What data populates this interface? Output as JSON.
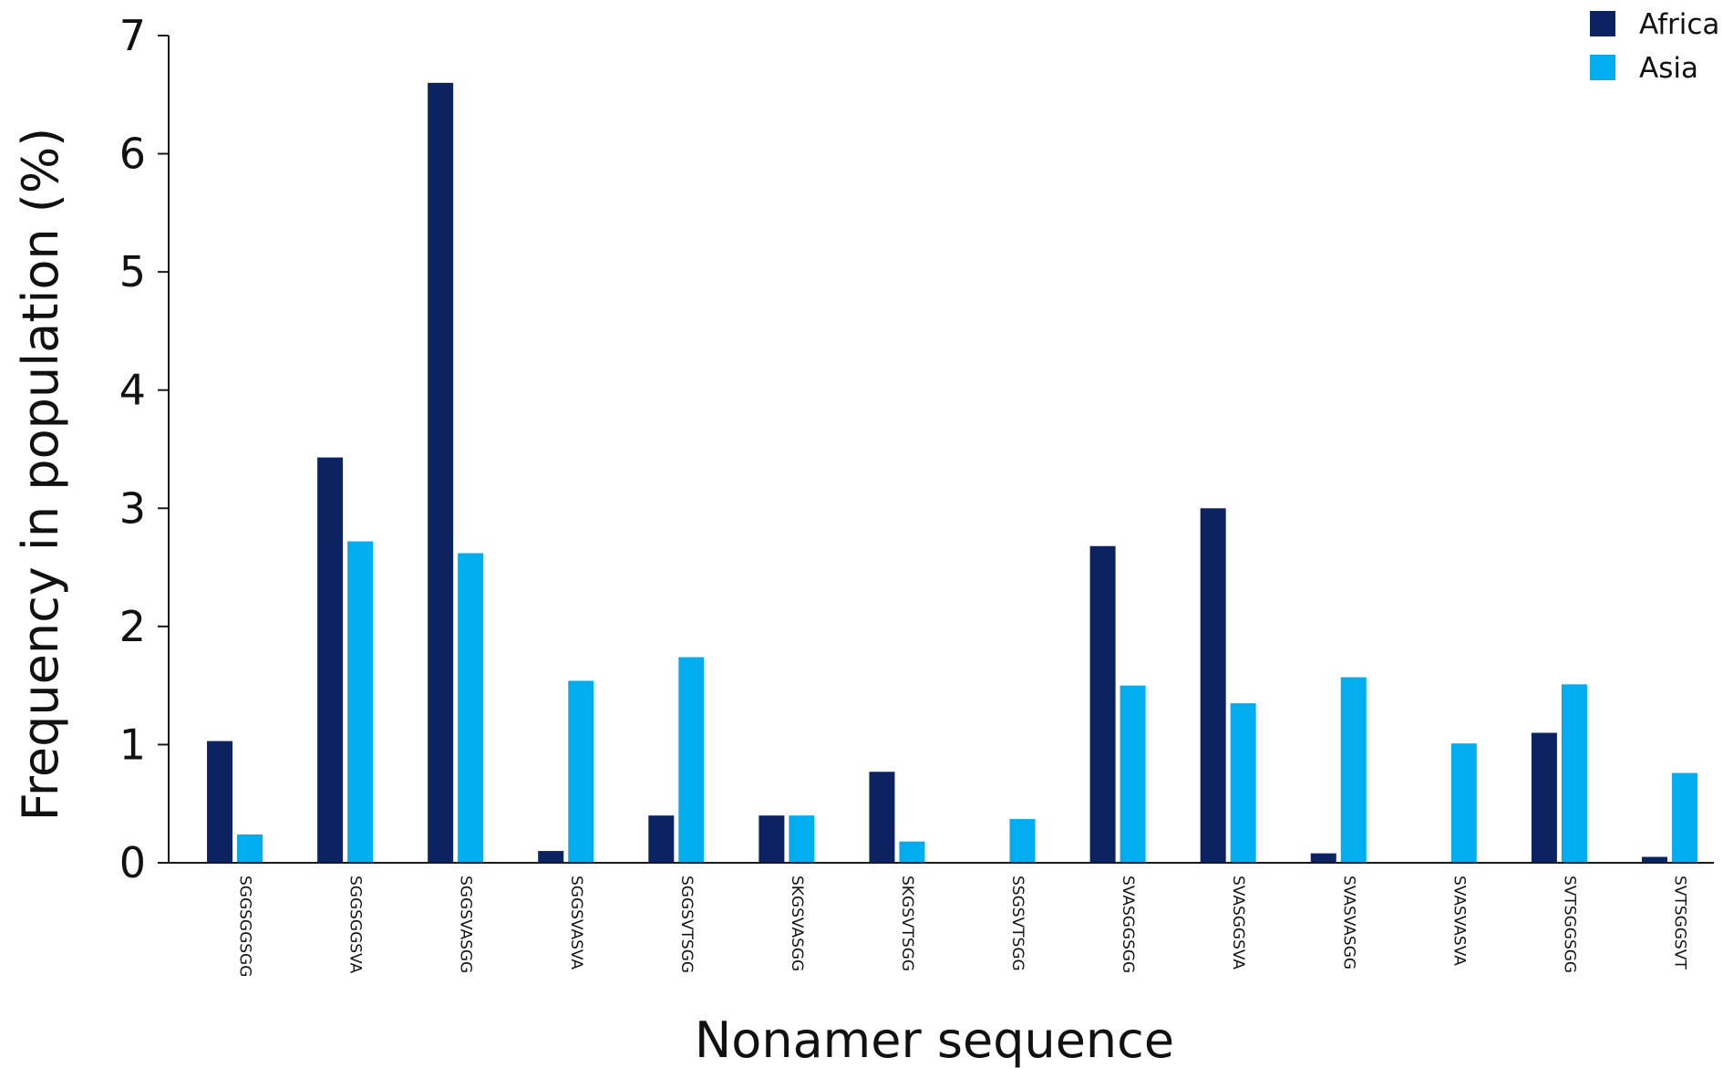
{
  "chart_data": {
    "type": "bar",
    "xlabel": "Nonamer sequence",
    "ylabel": "Frequency in population (%)",
    "ylim": [
      0,
      7
    ],
    "yticks": [
      "0",
      "1",
      "2",
      "3",
      "4",
      "5",
      "6",
      "7"
    ],
    "grid": false,
    "legend_position": "top-right",
    "categories": [
      "SGGSGGSGG",
      "SGGSGGSVA",
      "SGGSVASGG",
      "SGGSVASVA",
      "SGGSVTSGG",
      "SKGSVASGG",
      "SKGSVTSGG",
      "SSGSVTSGG",
      "SVASGGSGG",
      "SVASGGSVA",
      "SVASVASGG",
      "SVASVASVA",
      "SVTSGGSGG",
      "SVTSGGSVT"
    ],
    "series": [
      {
        "name": "Africa",
        "color": "#0b2461",
        "values": [
          1.03,
          3.43,
          6.6,
          0.1,
          0.4,
          0.4,
          0.77,
          0,
          2.68,
          3.0,
          0.08,
          0,
          1.1,
          0.05
        ]
      },
      {
        "name": "Asia",
        "color": "#00aeef",
        "values": [
          0.24,
          2.72,
          2.62,
          1.54,
          1.74,
          0.4,
          0.18,
          0.37,
          1.5,
          1.35,
          1.57,
          1.01,
          1.51,
          0.76
        ]
      }
    ]
  }
}
